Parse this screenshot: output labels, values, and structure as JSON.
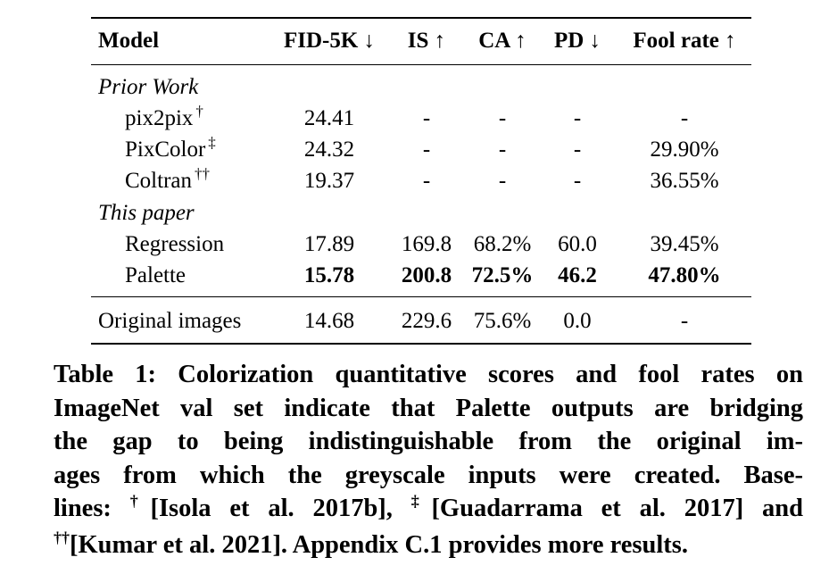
{
  "table": {
    "headers": {
      "model": "Model",
      "fid": "FID-5K ↓",
      "is": "IS ↑",
      "ca": "CA ↑",
      "pd": "PD ↓",
      "fool": "Fool rate ↑"
    },
    "sections": {
      "prior": "Prior Work",
      "ours": "This paper"
    },
    "rows": [
      {
        "model": "pix2pix",
        "mark": "†",
        "fid": "24.41",
        "is": "-",
        "ca": "-",
        "pd": "-",
        "fool": "-"
      },
      {
        "model": "PixColor",
        "mark": "‡",
        "fid": "24.32",
        "is": "-",
        "ca": "-",
        "pd": "-",
        "fool": "29.90%"
      },
      {
        "model": "Coltran",
        "mark": "††",
        "fid": "19.37",
        "is": "-",
        "ca": "-",
        "pd": "-",
        "fool": "36.55%"
      },
      {
        "model": "Regression",
        "mark": "",
        "fid": "17.89",
        "is": "169.8",
        "ca": "68.2%",
        "pd": "60.0",
        "fool": "39.45%"
      },
      {
        "model": "Palette",
        "mark": "",
        "fid": "15.78",
        "is": "200.8",
        "ca": "72.5%",
        "pd": "46.2",
        "fool": "47.80%"
      },
      {
        "model": "Original images",
        "mark": "",
        "fid": "14.68",
        "is": "229.6",
        "ca": "75.6%",
        "pd": "0.0",
        "fool": "-"
      }
    ]
  },
  "caption": {
    "line1": "Table 1: Colorization quantitative scores and fool rates on",
    "line2": "ImageNet val set indicate that Palette outputs are bridging",
    "line3": "the gap to being indistinguishable from the original im-",
    "line4": "ages from which the greyscale inputs were created. Base-",
    "line5_a": "lines: ",
    "line5_m1": "†",
    "line5_b": "[Isola et al. 2017b], ",
    "line5_m2": "‡",
    "line5_c": "[Guadarrama et al. 2017] and",
    "line6_m": "††",
    "line6_b": "[Kumar et al. 2021]. Appendix C.1 provides more results."
  }
}
